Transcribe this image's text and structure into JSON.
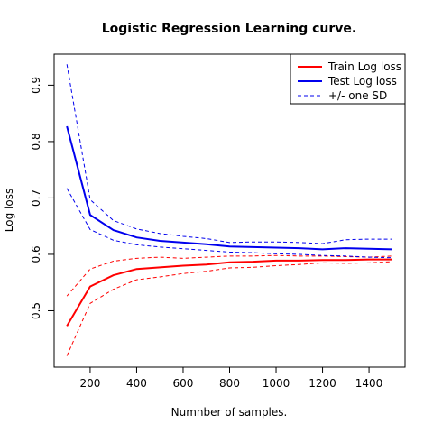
{
  "chart_data": {
    "type": "line",
    "title": "Logistic Regression Learning curve.",
    "xlabel": "Numnber of samples.",
    "ylabel": "Log loss",
    "xlim": [
      45,
      1555
    ],
    "ylim": [
      0.4,
      0.955
    ],
    "x_ticks": [
      200,
      400,
      600,
      800,
      1000,
      1200,
      1400
    ],
    "y_ticks": [
      0.5,
      0.6,
      0.7,
      0.8,
      0.9
    ],
    "x": [
      100,
      200,
      300,
      400,
      500,
      600,
      700,
      800,
      900,
      1000,
      1100,
      1200,
      1300,
      1400,
      1500
    ],
    "grid": false,
    "legend_position": "top-right",
    "series": [
      {
        "name": "Train Log loss",
        "color": "#ff0000",
        "style": "solid",
        "values": [
          0.473,
          0.543,
          0.563,
          0.574,
          0.577,
          0.58,
          0.582,
          0.586,
          0.587,
          0.589,
          0.589,
          0.59,
          0.59,
          0.591,
          0.591
        ]
      },
      {
        "name": "Train +/- one SD (upper)",
        "color": "#ff0000",
        "style": "dashed",
        "values": [
          0.526,
          0.574,
          0.588,
          0.593,
          0.595,
          0.593,
          0.595,
          0.597,
          0.597,
          0.598,
          0.597,
          0.597,
          0.596,
          0.595,
          0.597
        ]
      },
      {
        "name": "Train +/- one SD (lower)",
        "color": "#ff0000",
        "style": "dashed",
        "values": [
          0.42,
          0.513,
          0.538,
          0.555,
          0.56,
          0.566,
          0.57,
          0.576,
          0.577,
          0.58,
          0.582,
          0.585,
          0.584,
          0.585,
          0.587
        ]
      },
      {
        "name": "Test Log loss",
        "color": "#0000ee",
        "style": "solid",
        "values": [
          0.827,
          0.67,
          0.643,
          0.63,
          0.624,
          0.621,
          0.618,
          0.614,
          0.613,
          0.612,
          0.611,
          0.609,
          0.611,
          0.61,
          0.609
        ]
      },
      {
        "name": "Test +/- one SD (upper)",
        "color": "#0000ee",
        "style": "dashed",
        "values": [
          0.937,
          0.697,
          0.66,
          0.645,
          0.637,
          0.632,
          0.628,
          0.621,
          0.622,
          0.622,
          0.621,
          0.619,
          0.626,
          0.627,
          0.627
        ]
      },
      {
        "name": "Test +/- one SD (lower)",
        "color": "#0000ee",
        "style": "dashed",
        "values": [
          0.717,
          0.644,
          0.625,
          0.617,
          0.613,
          0.61,
          0.607,
          0.604,
          0.603,
          0.601,
          0.6,
          0.598,
          0.597,
          0.595,
          0.594
        ]
      }
    ],
    "legend": [
      {
        "label": "Train Log loss",
        "color": "#ff0000",
        "style": "solid"
      },
      {
        "label": "Test Log loss",
        "color": "#0000ee",
        "style": "solid"
      },
      {
        "label": "+/- one SD",
        "color": "#0000ee",
        "style": "dashed"
      }
    ]
  }
}
